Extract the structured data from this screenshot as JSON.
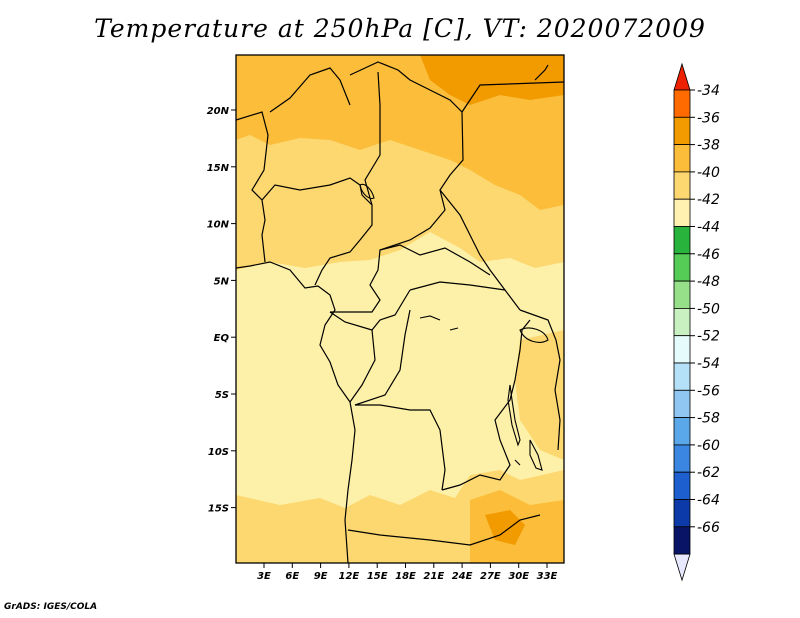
{
  "title": "Temperature at 250hPa [C], VT: 2020072009",
  "footer": "GrADS: IGES/COLA",
  "map": {
    "region": "Central Africa",
    "lon_range": [
      0,
      35
    ],
    "lat_range": [
      -20,
      25
    ],
    "lat_labels": [
      "20N",
      "15N",
      "10N",
      "5N",
      "EQ",
      "5S",
      "10S",
      "15S"
    ],
    "lon_labels": [
      "3E",
      "6E",
      "9E",
      "12E",
      "15E",
      "18E",
      "21E",
      "24E",
      "27E",
      "30E",
      "33E"
    ]
  },
  "colorbar": {
    "labels": [
      "-34",
      "-36",
      "-38",
      "-40",
      "-42",
      "-44",
      "-46",
      "-48",
      "-50",
      "-52",
      "-54",
      "-56",
      "-58",
      "-60",
      "-62",
      "-64",
      "-66"
    ],
    "colors": [
      "#ff6b00",
      "#f29b00",
      "#fbbd3a",
      "#fdd870",
      "#fff2b0",
      "#27b33c",
      "#55cc55",
      "#96e08a",
      "#c8f0c0",
      "#e6fbfb",
      "#b4e0f8",
      "#8fc6f2",
      "#5aa8ea",
      "#3b86e0",
      "#1e5fd0",
      "#0c3aa8",
      "#0a1466"
    ],
    "top_cap_color": "#ee2200",
    "bottom_cap_color": "#e8e8ff"
  }
}
